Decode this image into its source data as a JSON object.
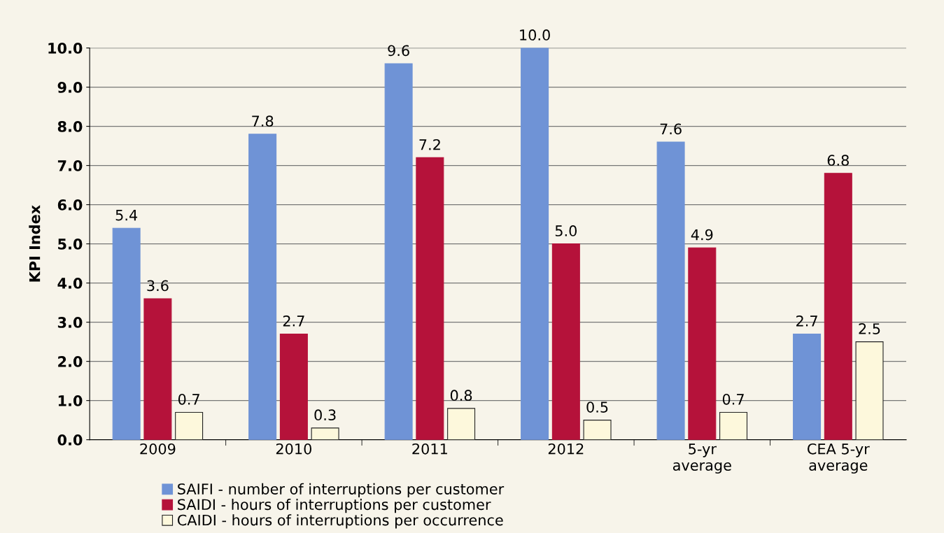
{
  "chart_data": {
    "type": "bar",
    "ylabel": "KPI Index",
    "categories": [
      "2009",
      "2010",
      "2011",
      "2012",
      "5-yr average",
      "CEA 5-yr average"
    ],
    "series": [
      {
        "name": "SAIFI - number of interruptions per customer",
        "color": "#6f93d6",
        "values": [
          5.4,
          7.8,
          9.6,
          10.0,
          7.6,
          2.7
        ],
        "value_labels": [
          "5.4",
          "7.8",
          "9.6",
          "10.0",
          "7.6",
          "2.7"
        ]
      },
      {
        "name": "SAIDI - hours of interruptions per customer",
        "color": "#b5123a",
        "values": [
          3.6,
          2.7,
          7.2,
          5.0,
          4.9,
          6.8
        ],
        "value_labels": [
          "3.6",
          "2.7",
          "7.2",
          "5.0",
          "4.9",
          "6.8"
        ]
      },
      {
        "name": "CAIDI - hours of interruptions per occurrence",
        "color": "#fdf8dc",
        "values": [
          0.7,
          0.3,
          0.8,
          0.5,
          0.7,
          2.5
        ],
        "value_labels": [
          "0.7",
          "0.3",
          "0.8",
          "0.5",
          "0.7",
          "2.5"
        ]
      }
    ],
    "ylim": [
      0,
      10
    ],
    "yticks": [
      {
        "value": 0,
        "label": "0.0"
      },
      {
        "value": 1,
        "label": "1.0"
      },
      {
        "value": 2,
        "label": "2.0"
      },
      {
        "value": 3,
        "label": "3.0"
      },
      {
        "value": 4,
        "label": "4.0"
      },
      {
        "value": 5,
        "label": "5.0"
      },
      {
        "value": 6,
        "label": "6.0"
      },
      {
        "value": 7,
        "label": "7.0"
      },
      {
        "value": 8,
        "label": "8.0"
      },
      {
        "value": 9,
        "label": "9.0"
      },
      {
        "value": 10,
        "label": "10.0"
      }
    ],
    "grid": "y",
    "legend": "bottom"
  }
}
